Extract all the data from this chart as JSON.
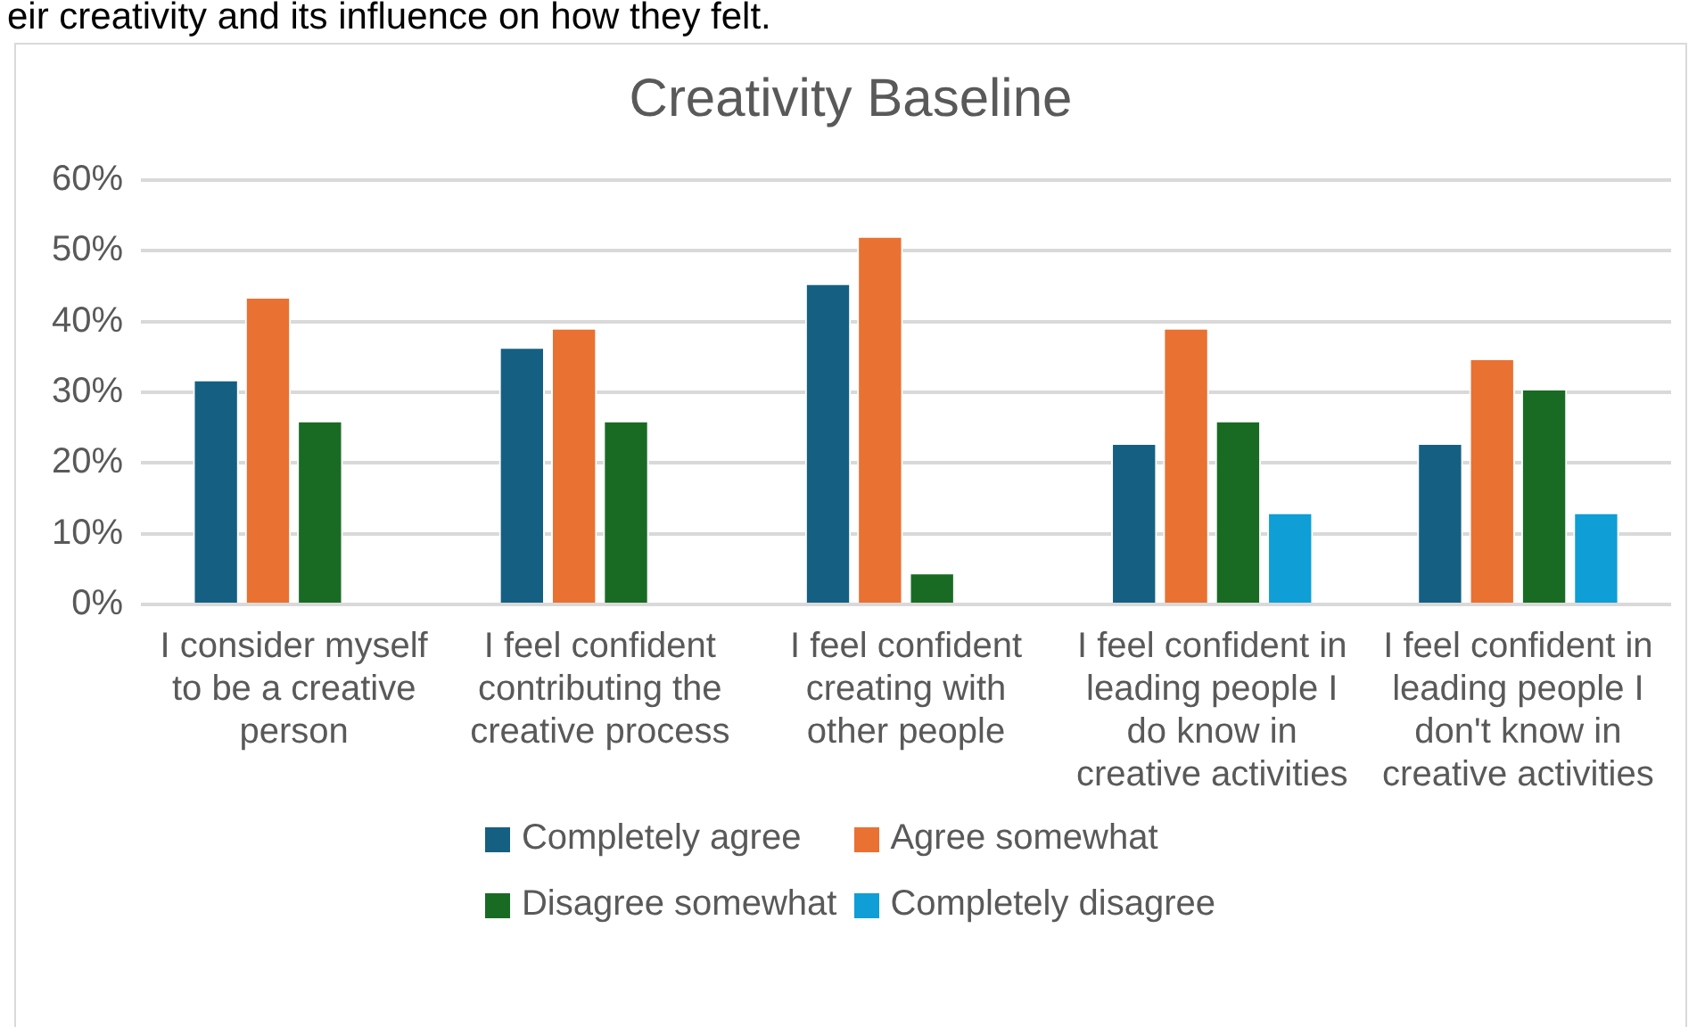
{
  "chart_data": {
    "type": "bar",
    "title": "Creativity Baseline",
    "annotations": [
      "eir creativity and its influence on how they felt."
    ],
    "categories": [
      "I consider myself to be a creative person",
      "I feel confident contributing the creative process",
      "I feel confident creating with other people",
      "I feel confident in leading people I do know in creative activities",
      "I feel confident in leading people I don't know in creative activities"
    ],
    "series": [
      {
        "name": "Completely agree",
        "color": "#156082",
        "values": [
          31.8,
          36.4,
          45.4,
          22.8,
          22.8
        ]
      },
      {
        "name": "Agree somewhat",
        "color": "#e97132",
        "values": [
          43.5,
          39.1,
          52.1,
          39.1,
          34.8
        ]
      },
      {
        "name": "Disagree somewhat",
        "color": "#196b24",
        "values": [
          26,
          26,
          4.5,
          26,
          30.5
        ]
      },
      {
        "name": "Completely disagree",
        "color": "#0f9ed5",
        "values": [
          null,
          null,
          null,
          13,
          13
        ]
      }
    ],
    "ylim": [
      0,
      60
    ],
    "yticks": [
      {
        "value": 0,
        "label": "0%"
      },
      {
        "value": 10,
        "label": "10%"
      },
      {
        "value": 20,
        "label": "20%"
      },
      {
        "value": 30,
        "label": "30%"
      },
      {
        "value": 40,
        "label": "40%"
      },
      {
        "value": 50,
        "label": "50%"
      },
      {
        "value": 60,
        "label": "60%"
      }
    ],
    "grid": "y",
    "legend": "bottom"
  }
}
